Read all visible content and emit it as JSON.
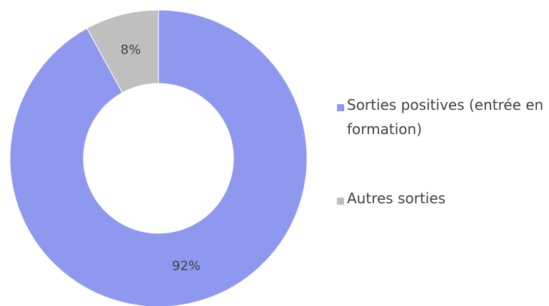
{
  "chart_data": {
    "type": "donut",
    "categories": [
      "Sorties positives (entrée en formation)",
      "Autres sorties"
    ],
    "values": [
      92,
      8
    ],
    "value_labels": [
      "92%",
      "8%"
    ],
    "colors": [
      "#8f98ef",
      "#bfbfbf"
    ],
    "legend": "right"
  }
}
